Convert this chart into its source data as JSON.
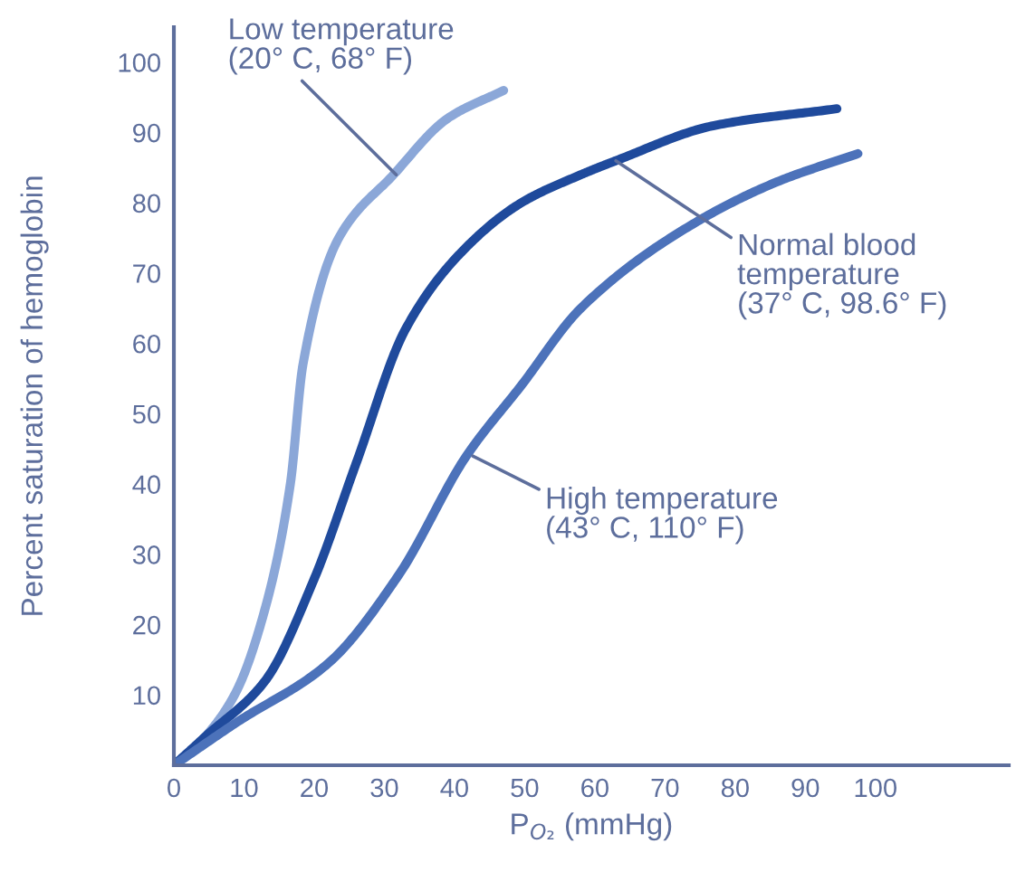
{
  "chart_data": {
    "type": "line",
    "xlabel": "P$_{O₂}$ (mmHg)",
    "ylabel": "Percent saturation of hemoglobin",
    "xlim": [
      0,
      119
    ],
    "ylim": [
      0,
      105
    ],
    "xticks": [
      0,
      10,
      20,
      30,
      40,
      50,
      60,
      70,
      80,
      90,
      100
    ],
    "yticks": [
      10,
      20,
      30,
      40,
      50,
      60,
      70,
      80,
      90,
      100
    ],
    "grid": false,
    "legend": false,
    "marker": "none",
    "line_style": "solid",
    "series": [
      {
        "color": "#8ba7d8",
        "x": [
          0,
          4.4,
          8.8,
          13.2,
          16.6,
          18.4,
          23.5,
          31.3,
          39,
          47
        ],
        "values": [
          0,
          4,
          10.3,
          23,
          40,
          57,
          75,
          84,
          92,
          96
        ]
      },
      {
        "color": "#1f4a9c",
        "x": [
          0,
          4.4,
          13,
          20,
          26,
          33,
          41,
          49.5,
          58,
          63,
          77,
          94.5
        ],
        "values": [
          0,
          4,
          12,
          26.5,
          43,
          62,
          73,
          80,
          84,
          86,
          91,
          93.4
        ]
      },
      {
        "color": "#4c72ba",
        "x": [
          0,
          8.8,
          22,
          32,
          41.7,
          49.5,
          58,
          74,
          86,
          97.5
        ],
        "values": [
          0,
          6,
          14.5,
          27,
          44,
          54,
          65,
          77,
          83,
          87
        ]
      }
    ],
    "annotations": [
      {
        "text": "Low temperature\n(20° C, 68° F)",
        "x": 31.7,
        "y": 84
      },
      {
        "text": "Normal blood\ntemperature\n(37° C, 98.6° F)",
        "x": 63,
        "y": 86
      },
      {
        "text": "High temperature\n(43° C, 110° F)",
        "x": 42.6,
        "y": 44
      }
    ]
  }
}
